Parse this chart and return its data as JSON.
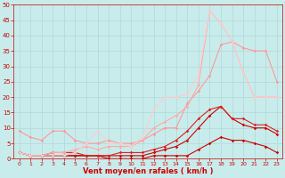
{
  "background_color": "#c8ecec",
  "grid_color": "#b0d8d8",
  "xlabel": "Vent moyen/en rafales ( km/h )",
  "xlabel_color": "#cc0000",
  "tick_color": "#cc0000",
  "xlim": [
    -0.5,
    23.5
  ],
  "ylim": [
    0,
    50
  ],
  "yticks": [
    0,
    5,
    10,
    15,
    20,
    25,
    30,
    35,
    40,
    45,
    50
  ],
  "xticks": [
    0,
    1,
    2,
    3,
    4,
    5,
    6,
    7,
    8,
    9,
    10,
    11,
    12,
    13,
    14,
    15,
    16,
    17,
    18,
    19,
    20,
    21,
    22,
    23
  ],
  "series": [
    {
      "x": [
        0,
        1,
        2,
        3,
        4,
        5,
        6,
        7,
        8,
        9,
        10,
        11,
        12,
        13,
        14,
        15,
        16,
        17,
        18,
        19,
        20,
        21,
        22,
        23
      ],
      "y": [
        2,
        1,
        1,
        1,
        1,
        1,
        1,
        1,
        0,
        0,
        0,
        0,
        1,
        1,
        1,
        1,
        3,
        5,
        7,
        6,
        6,
        5,
        4,
        2
      ],
      "color": "#cc0000",
      "lw": 0.8,
      "marker": "D",
      "ms": 1.8
    },
    {
      "x": [
        0,
        1,
        2,
        3,
        4,
        5,
        6,
        7,
        8,
        9,
        10,
        11,
        12,
        13,
        14,
        15,
        16,
        17,
        18,
        19,
        20,
        21,
        22,
        23
      ],
      "y": [
        2,
        1,
        1,
        1,
        1,
        1,
        1,
        1,
        1,
        1,
        1,
        1,
        2,
        3,
        4,
        6,
        10,
        14,
        17,
        13,
        11,
        10,
        10,
        8
      ],
      "color": "#cc0000",
      "lw": 0.8,
      "marker": "D",
      "ms": 1.8
    },
    {
      "x": [
        0,
        1,
        2,
        3,
        4,
        5,
        6,
        7,
        8,
        9,
        10,
        11,
        12,
        13,
        14,
        15,
        16,
        17,
        18,
        19,
        20,
        21,
        22,
        23
      ],
      "y": [
        2,
        1,
        1,
        2,
        2,
        2,
        1,
        1,
        1,
        2,
        2,
        2,
        3,
        4,
        6,
        9,
        13,
        16,
        17,
        13,
        13,
        11,
        11,
        9
      ],
      "color": "#dd2222",
      "lw": 0.8,
      "marker": "D",
      "ms": 1.8
    },
    {
      "x": [
        0,
        1,
        2,
        3,
        4,
        5,
        6,
        7,
        8,
        9,
        10,
        11,
        12,
        13,
        14,
        15,
        16,
        17,
        18,
        19,
        20,
        21,
        22,
        23
      ],
      "y": [
        9,
        7,
        6,
        9,
        9,
        6,
        5,
        5,
        6,
        5,
        5,
        6,
        8,
        10,
        10,
        18,
        22,
        27,
        37,
        38,
        36,
        35,
        35,
        25
      ],
      "color": "#ff9999",
      "lw": 0.8,
      "marker": "D",
      "ms": 1.8
    },
    {
      "x": [
        0,
        1,
        2,
        3,
        4,
        5,
        6,
        7,
        8,
        9,
        10,
        11,
        12,
        13,
        14,
        15,
        16,
        17,
        18,
        19,
        20,
        21,
        22,
        23
      ],
      "y": [
        2,
        1,
        1,
        2,
        2,
        3,
        4,
        3,
        4,
        4,
        4,
        6,
        10,
        12,
        14,
        17,
        24,
        48,
        44,
        38,
        28,
        20,
        20,
        20
      ],
      "color": "#ffaaaa",
      "lw": 0.8,
      "marker": "D",
      "ms": 1.8
    },
    {
      "x": [
        0,
        1,
        2,
        3,
        4,
        5,
        6,
        7,
        8,
        9,
        10,
        11,
        12,
        13,
        14,
        15,
        16,
        17,
        18,
        19,
        20,
        21,
        22,
        23
      ],
      "y": [
        2,
        1,
        1,
        1,
        1,
        2,
        5,
        9,
        5,
        5,
        4,
        7,
        16,
        20,
        20,
        21,
        27,
        48,
        44,
        38,
        28,
        20,
        20,
        20
      ],
      "color": "#ffcccc",
      "lw": 0.8,
      "marker": "D",
      "ms": 1.8
    }
  ]
}
